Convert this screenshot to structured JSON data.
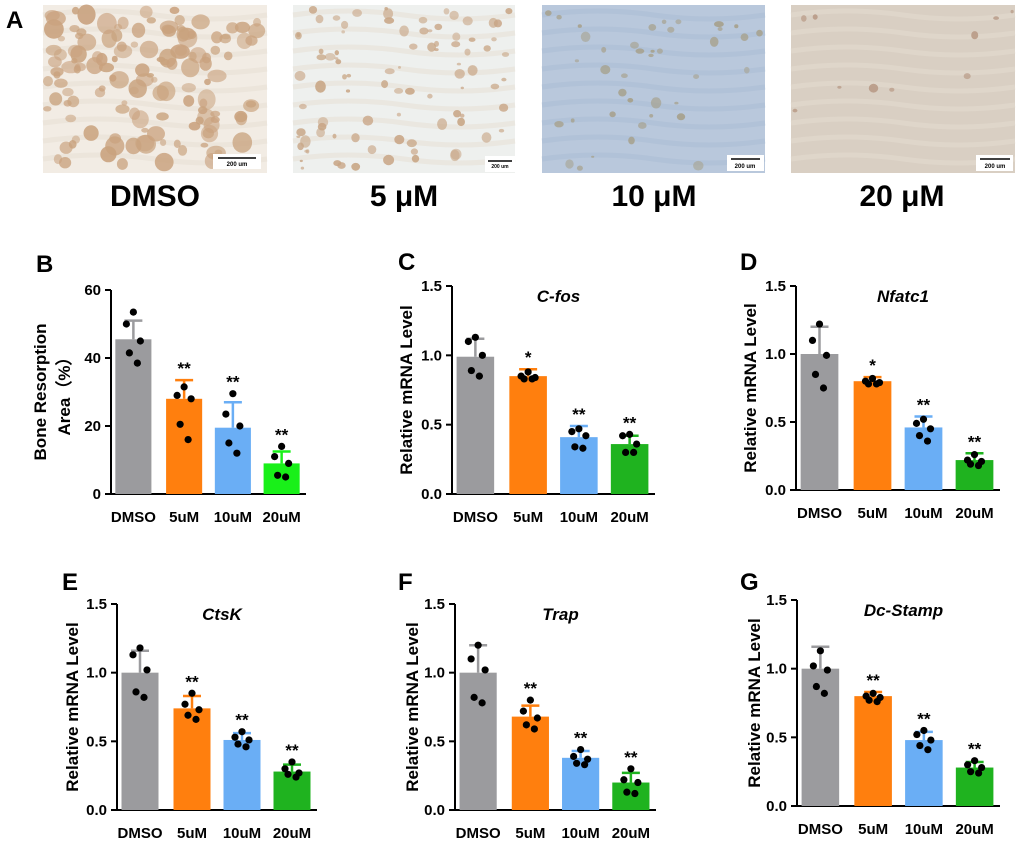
{
  "figure_panels": {
    "a": "A",
    "b": "B",
    "c": "C",
    "d": "D",
    "e": "E",
    "f": "F",
    "g": "G"
  },
  "images": [
    {
      "caption": "DMSO",
      "scale": "200 um",
      "tone": "#f2ece4",
      "stain": "#c9a27e",
      "density": "heavy"
    },
    {
      "caption": "5 μM",
      "scale": "200 um",
      "tone": "#eef0ee",
      "stain": "#c8a585",
      "density": "medium"
    },
    {
      "caption": "10 μM",
      "scale": "200 um",
      "tone": "#b9c8dc",
      "stain": "#a6a08a",
      "density": "light"
    },
    {
      "caption": "20 μM",
      "scale": "200 um",
      "tone": "#d9cfc3",
      "stain": "#b89a86",
      "density": "trace"
    }
  ],
  "colors": {
    "grey": "#9b9b9e",
    "orange": "#ff7f0e",
    "blue": "#6aaef5",
    "green": "#1fb31f",
    "lime": "#19f019",
    "dot": "#000000"
  },
  "chart_data": [
    {
      "panel": "B",
      "type": "bar",
      "title": "",
      "ylabel": [
        "Bone Resorption",
        "Area（%）"
      ],
      "ylim": [
        0,
        60
      ],
      "yticks": [
        "0",
        "20",
        "40",
        "60"
      ],
      "categories": [
        "DMSO",
        "5uM",
        "10uM",
        "20uM"
      ],
      "bar_colors": [
        "grey",
        "orange",
        "blue",
        "lime"
      ],
      "values": [
        45.5,
        28,
        19.5,
        9
      ],
      "errors": [
        5.5,
        5.5,
        7.5,
        3.5
      ],
      "points": [
        [
          53.5,
          50,
          45,
          41.5,
          38.5
        ],
        [
          31.5,
          29,
          28,
          20.5,
          16
        ],
        [
          29.5,
          23.5,
          20,
          15,
          12
        ],
        [
          14,
          11,
          9,
          5.5,
          5
        ]
      ],
      "sig": [
        "",
        "**",
        "**",
        "**"
      ]
    },
    {
      "panel": "C",
      "type": "bar",
      "title": "C-fos",
      "ylabel": [
        "Relative mRNA Level"
      ],
      "ylim": [
        0,
        1.5
      ],
      "yticks": [
        "0.0",
        "0.5",
        "1.0",
        "1.5"
      ],
      "categories": [
        "DMSO",
        "5uM",
        "10uM",
        "20uM"
      ],
      "bar_colors": [
        "grey",
        "orange",
        "blue",
        "green"
      ],
      "values": [
        0.99,
        0.85,
        0.41,
        0.36
      ],
      "errors": [
        0.13,
        0.05,
        0.08,
        0.06
      ],
      "points": [
        [
          1.13,
          1.1,
          1.0,
          0.89,
          0.85
        ],
        [
          0.88,
          0.85,
          0.84,
          0.83,
          0.83
        ],
        [
          0.47,
          0.45,
          0.42,
          0.34,
          0.33
        ],
        [
          0.43,
          0.42,
          0.36,
          0.3,
          0.3
        ]
      ],
      "sig": [
        "",
        "*",
        "**",
        "**"
      ]
    },
    {
      "panel": "D",
      "type": "bar",
      "title": "Nfatc1",
      "ylabel": [
        "Relative mRNA Level"
      ],
      "ylim": [
        0,
        1.5
      ],
      "yticks": [
        "0.0",
        "0.5",
        "1.0",
        "1.5"
      ],
      "categories": [
        "DMSO",
        "5uM",
        "10uM",
        "20uM"
      ],
      "bar_colors": [
        "grey",
        "orange",
        "blue",
        "green"
      ],
      "values": [
        1.0,
        0.8,
        0.46,
        0.22
      ],
      "errors": [
        0.2,
        0.03,
        0.08,
        0.05
      ],
      "points": [
        [
          1.22,
          1.1,
          0.99,
          0.85,
          0.75
        ],
        [
          0.82,
          0.8,
          0.79,
          0.78,
          0.78
        ],
        [
          0.52,
          0.49,
          0.45,
          0.4,
          0.36
        ],
        [
          0.26,
          0.22,
          0.21,
          0.19,
          0.18
        ]
      ],
      "sig": [
        "",
        "*",
        "**",
        "**"
      ]
    },
    {
      "panel": "E",
      "type": "bar",
      "title": "CtsK",
      "ylabel": [
        "Relative mRNA Level"
      ],
      "ylim": [
        0,
        1.5
      ],
      "yticks": [
        "0.0",
        "0.5",
        "1.0",
        "1.5"
      ],
      "categories": [
        "DMSO",
        "5uM",
        "10uM",
        "20uM"
      ],
      "bar_colors": [
        "grey",
        "orange",
        "blue",
        "green"
      ],
      "values": [
        1.0,
        0.74,
        0.51,
        0.28
      ],
      "errors": [
        0.16,
        0.09,
        0.05,
        0.05
      ],
      "points": [
        [
          1.18,
          1.13,
          1.02,
          0.86,
          0.82
        ],
        [
          0.85,
          0.77,
          0.73,
          0.69,
          0.66
        ],
        [
          0.57,
          0.53,
          0.51,
          0.48,
          0.46
        ],
        [
          0.35,
          0.3,
          0.27,
          0.26,
          0.24
        ]
      ],
      "sig": [
        "",
        "**",
        "**",
        "**"
      ]
    },
    {
      "panel": "F",
      "type": "bar",
      "title": "Trap",
      "ylabel": [
        "Relative mRNA Level"
      ],
      "ylim": [
        0,
        1.5
      ],
      "yticks": [
        "0.0",
        "0.5",
        "1.0",
        "1.5"
      ],
      "categories": [
        "DMSO",
        "5uM",
        "10uM",
        "20uM"
      ],
      "bar_colors": [
        "grey",
        "orange",
        "blue",
        "green"
      ],
      "values": [
        1.0,
        0.68,
        0.38,
        0.2
      ],
      "errors": [
        0.2,
        0.08,
        0.05,
        0.07
      ],
      "points": [
        [
          1.2,
          1.1,
          1.02,
          0.82,
          0.78
        ],
        [
          0.8,
          0.72,
          0.67,
          0.62,
          0.59
        ],
        [
          0.44,
          0.39,
          0.37,
          0.34,
          0.33
        ],
        [
          0.3,
          0.22,
          0.2,
          0.13,
          0.12
        ]
      ],
      "sig": [
        "",
        "**",
        "**",
        "**"
      ]
    },
    {
      "panel": "G",
      "type": "bar",
      "title": "Dc-Stamp",
      "ylabel": [
        "Relative mRNA Level"
      ],
      "ylim": [
        0,
        1.5
      ],
      "yticks": [
        "0.0",
        "0.5",
        "1.0",
        "1.5"
      ],
      "categories": [
        "DMSO",
        "5uM",
        "10uM",
        "20uM"
      ],
      "bar_colors": [
        "grey",
        "orange",
        "blue",
        "green"
      ],
      "values": [
        1.0,
        0.8,
        0.48,
        0.28
      ],
      "errors": [
        0.16,
        0.03,
        0.06,
        0.04
      ],
      "points": [
        [
          1.13,
          1.02,
          0.99,
          0.87,
          0.82
        ],
        [
          0.82,
          0.8,
          0.79,
          0.77,
          0.76
        ],
        [
          0.55,
          0.52,
          0.48,
          0.44,
          0.41
        ],
        [
          0.33,
          0.3,
          0.28,
          0.25,
          0.24
        ]
      ],
      "sig": [
        "",
        "**",
        "**",
        "**"
      ]
    }
  ]
}
